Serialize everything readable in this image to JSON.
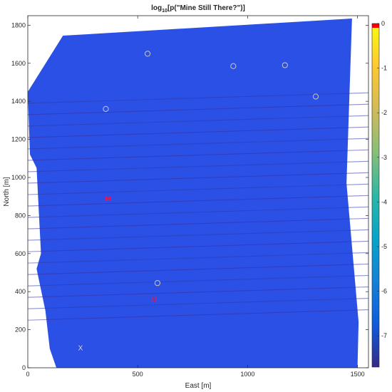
{
  "chart_data": {
    "type": "heatmap",
    "title": "log10[p(\"Mine Still There?\")]",
    "title_parts": {
      "prefix": "log",
      "subscript": "10",
      "suffix": "[p(\"Mine Still There?\")]"
    },
    "xlabel": "East [m]",
    "ylabel": "North [m]",
    "xlim": [
      0,
      1550
    ],
    "ylim": [
      0,
      1850
    ],
    "xticks": [
      0,
      500,
      1000,
      1500
    ],
    "xtick_labels": [
      "0",
      "500",
      "1000",
      "1500"
    ],
    "yticks": [
      0,
      200,
      400,
      600,
      800,
      1000,
      1200,
      1400,
      1600,
      1800
    ],
    "ytick_labels": [
      "0",
      "200",
      "400",
      "600",
      "800",
      "1000",
      "1200",
      "1400",
      "1600",
      "1800"
    ],
    "survey_polygon": [
      {
        "x": 130,
        "y": 0
      },
      {
        "x": 1500,
        "y": 0
      },
      {
        "x": 1505,
        "y": 240
      },
      {
        "x": 1450,
        "y": 970
      },
      {
        "x": 1475,
        "y": 1835
      },
      {
        "x": 160,
        "y": 1745
      },
      {
        "x": 0,
        "y": 1450
      },
      {
        "x": 10,
        "y": 1120
      },
      {
        "x": 40,
        "y": 1050
      },
      {
        "x": 60,
        "y": 600
      },
      {
        "x": 40,
        "y": 520
      },
      {
        "x": 80,
        "y": 300
      },
      {
        "x": 100,
        "y": 100
      }
    ],
    "field_value_approx": -6,
    "stripes_north": [
      1390,
      1330,
      1270,
      1210,
      1150,
      1090,
      1030,
      970,
      910,
      850,
      790,
      730,
      670,
      610,
      550,
      490,
      430,
      370,
      310,
      250
    ],
    "colorbar": {
      "range": [
        -7.7,
        0
      ],
      "ticks": [
        0,
        -1,
        -2,
        -3,
        -4,
        -5,
        -6,
        -7
      ],
      "tick_labels": [
        "0",
        "-1",
        "-2",
        "-3",
        "-4",
        "-5",
        "-6",
        "-7"
      ],
      "colormap": "parula",
      "colors": [
        "#352a87",
        "#0f5cdd",
        "#1481d6",
        "#06a4ca",
        "#2eb7a4",
        "#87bf77",
        "#d1bb59",
        "#fec832",
        "#f9fb0e"
      ],
      "top_color": "#ff0000"
    },
    "markers": [
      {
        "symbol": "o",
        "x": 545,
        "y": 1650,
        "color": "#c8c8c8"
      },
      {
        "symbol": "o",
        "x": 935,
        "y": 1585,
        "color": "#c8c8c8"
      },
      {
        "symbol": "o",
        "x": 1170,
        "y": 1590,
        "color": "#c8c8c8"
      },
      {
        "symbol": "o",
        "x": 1310,
        "y": 1425,
        "color": "#c8c8c8"
      },
      {
        "symbol": "o",
        "x": 355,
        "y": 1360,
        "color": "#c8c8c8"
      },
      {
        "symbol": "o",
        "x": 590,
        "y": 445,
        "color": "#c8c8c8"
      },
      {
        "symbol": "M",
        "x": 365,
        "y": 890,
        "color": "#e0185a"
      },
      {
        "symbol": "M",
        "x": 575,
        "y": 360,
        "color": "#e0185a"
      },
      {
        "symbol": "X",
        "x": 240,
        "y": 105,
        "color": "#d8d8c8"
      }
    ]
  }
}
